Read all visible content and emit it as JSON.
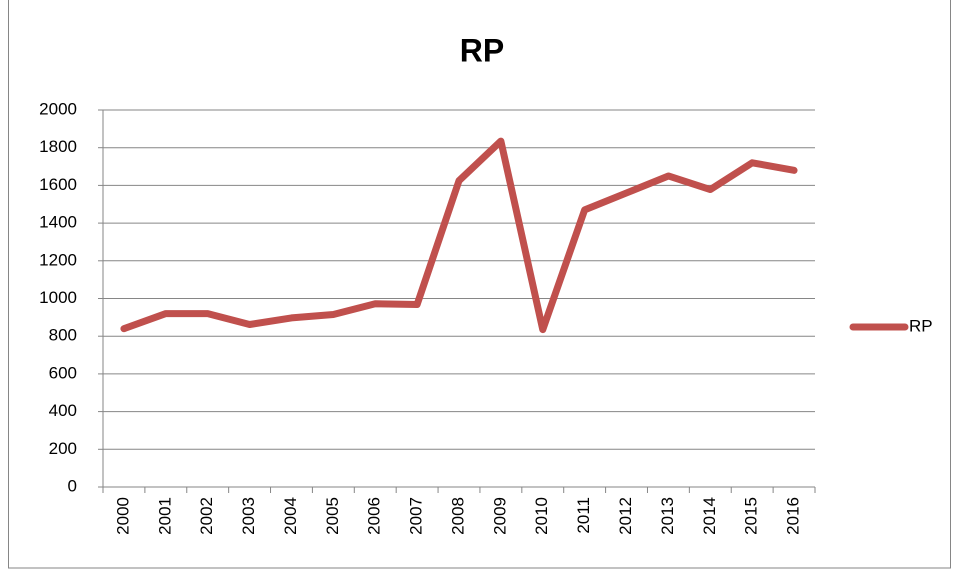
{
  "chart_data": {
    "type": "line",
    "title": "RP",
    "categories": [
      "2000",
      "2001",
      "2002",
      "2003",
      "2004",
      "2005",
      "2006",
      "2007",
      "2008",
      "2009",
      "2010",
      "2011",
      "2012",
      "2013",
      "2014",
      "2015",
      "2016"
    ],
    "series": [
      {
        "name": "RP",
        "color": "#c0504d",
        "values": [
          840,
          920,
          920,
          862,
          897,
          915,
          972,
          968,
          1625,
          1835,
          835,
          1470,
          1560,
          1650,
          1578,
          1720,
          1680
        ]
      }
    ],
    "ylim": [
      0,
      2000
    ],
    "yticks": [
      0,
      200,
      400,
      600,
      800,
      1000,
      1200,
      1400,
      1600,
      1800,
      2000
    ],
    "grid": true,
    "legend": "right"
  }
}
